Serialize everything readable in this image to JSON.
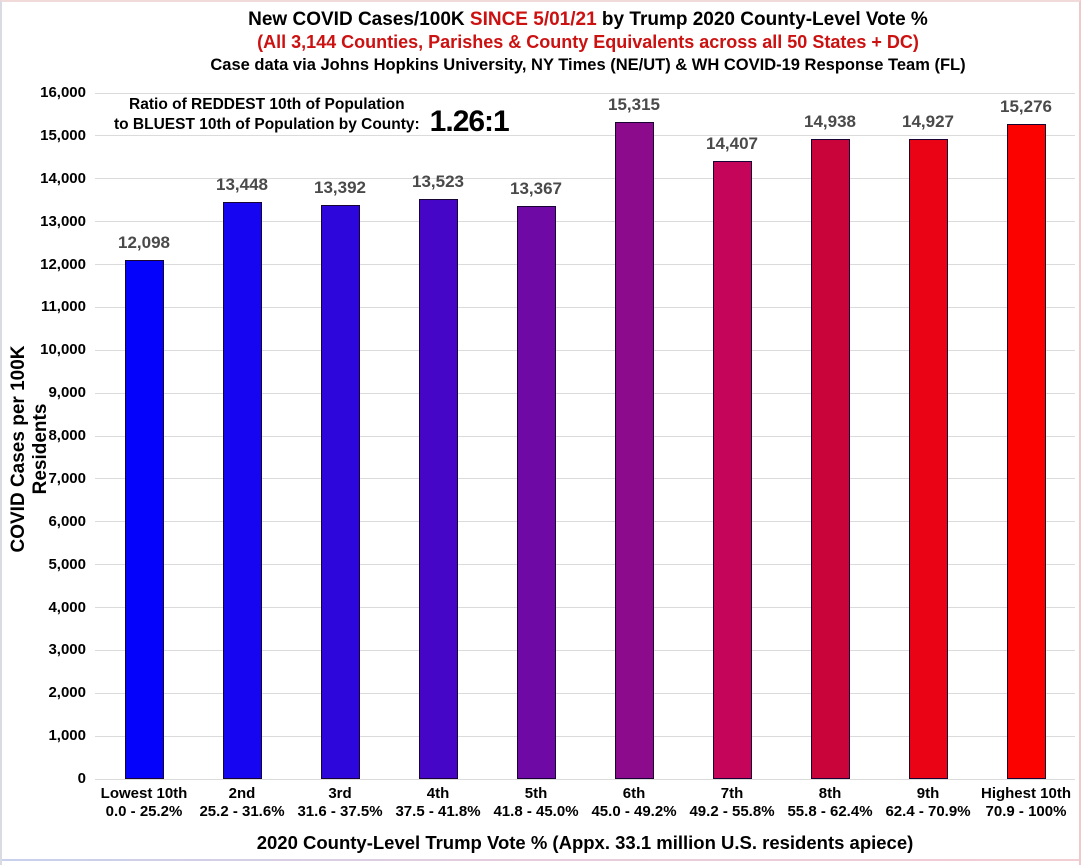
{
  "header": {
    "title_line1_part1": "New COVID Cases/100K ",
    "title_line1_red": "SINCE 5/01/21",
    "title_line1_part3": " by Trump 2020 County-Level Vote %",
    "title_line2": "(All 3,144 Counties, Parishes & County Equivalents across all 50 States + DC)",
    "title_line3": "Case data via Johns Hopkins University, NY Times (NE/UT) & WH COVID-19 Response Team (FL)",
    "accent_red": "#cc1111"
  },
  "annotation": {
    "line1": "Ratio of REDDEST 10th of Population",
    "line2": "to BLUEST 10th of Population by County:",
    "ratio": "1.26:1"
  },
  "chart_data": {
    "type": "bar",
    "title": "New COVID Cases/100K SINCE 5/01/21 by Trump 2020 County-Level Vote %",
    "xlabel": "2020 County-Level Trump Vote % (Appx. 33.1 million U.S. residents apiece)",
    "ylabel": "COVID Cases per 100K Residents",
    "ylim": [
      0,
      16000
    ],
    "ytick_step": 1000,
    "ytick_labels": [
      "0",
      "1,000",
      "2,000",
      "3,000",
      "4,000",
      "5,000",
      "6,000",
      "7,000",
      "8,000",
      "9,000",
      "10,000",
      "11,000",
      "12,000",
      "13,000",
      "14,000",
      "15,000",
      "16,000"
    ],
    "grid": true,
    "legend": "none",
    "categories": [
      {
        "tier": "Lowest 10th",
        "range": "0.0 - 25.2%"
      },
      {
        "tier": "2nd",
        "range": "25.2 - 31.6%"
      },
      {
        "tier": "3rd",
        "range": "31.6 - 37.5%"
      },
      {
        "tier": "4th",
        "range": "37.5 - 41.8%"
      },
      {
        "tier": "5th",
        "range": "41.8 - 45.0%"
      },
      {
        "tier": "6th",
        "range": "45.0 - 49.2%"
      },
      {
        "tier": "7th",
        "range": "49.2 - 55.8%"
      },
      {
        "tier": "8th",
        "range": "55.8 - 62.4%"
      },
      {
        "tier": "9th",
        "range": "62.4 - 70.9%"
      },
      {
        "tier": "Highest 10th",
        "range": "70.9 - 100%"
      }
    ],
    "values": [
      12098,
      13448,
      13392,
      13523,
      13367,
      15315,
      14407,
      14938,
      14927,
      15276
    ],
    "value_labels": [
      "12,098",
      "13,448",
      "13,392",
      "13,523",
      "13,367",
      "15,315",
      "14,407",
      "14,938",
      "14,927",
      "15,276"
    ],
    "bar_colors": [
      "#0502fb",
      "#1605f0",
      "#2d06dc",
      "#4506c8",
      "#6e09a6",
      "#8c0a8c",
      "#c40559",
      "#c8043a",
      "#e90314",
      "#fb0200"
    ],
    "bar_border_color": "#170433",
    "gridline_color": "#dbdbdb",
    "value_label_color": "#4a4a4a"
  }
}
